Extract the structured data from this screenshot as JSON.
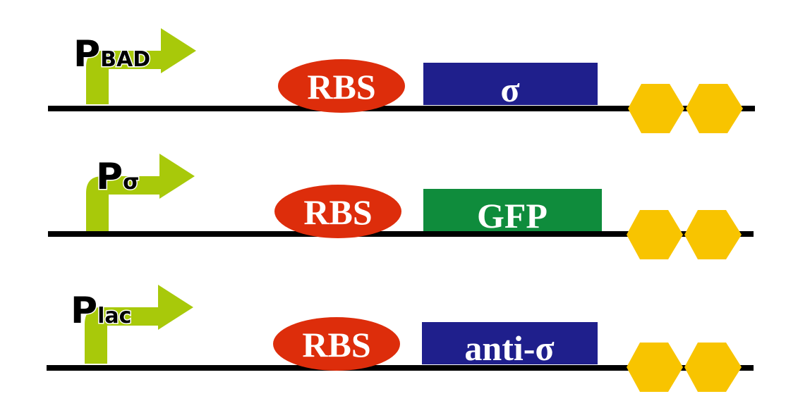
{
  "colors": {
    "backbone": "#000000",
    "promoter_arrow": "#a8c90a",
    "rbs": "#dd2d0b",
    "gene_blue": "#1f1f8c",
    "gene_green": "#0f8c3c",
    "terminator": "#f8c400"
  },
  "constructs": [
    {
      "promoter": {
        "main": "P",
        "sub": "BAD",
        "icon": "bent-arrow-icon"
      },
      "rbs": {
        "label": "RBS"
      },
      "gene": {
        "label": "σ",
        "color": "#1f1f8c"
      },
      "terminator": {
        "icon": "double-hexagon-icon"
      }
    },
    {
      "promoter": {
        "main": "P",
        "sub": "σ",
        "icon": "bent-arrow-icon"
      },
      "rbs": {
        "label": "RBS"
      },
      "gene": {
        "label": "GFP",
        "color": "#0f8c3c"
      },
      "terminator": {
        "icon": "double-hexagon-icon"
      }
    },
    {
      "promoter": {
        "main": "P",
        "sub": "lac",
        "icon": "bent-arrow-icon"
      },
      "rbs": {
        "label": "RBS"
      },
      "gene": {
        "label": "anti-σ",
        "color": "#1f1f8c"
      },
      "terminator": {
        "icon": "double-hexagon-icon"
      }
    }
  ]
}
